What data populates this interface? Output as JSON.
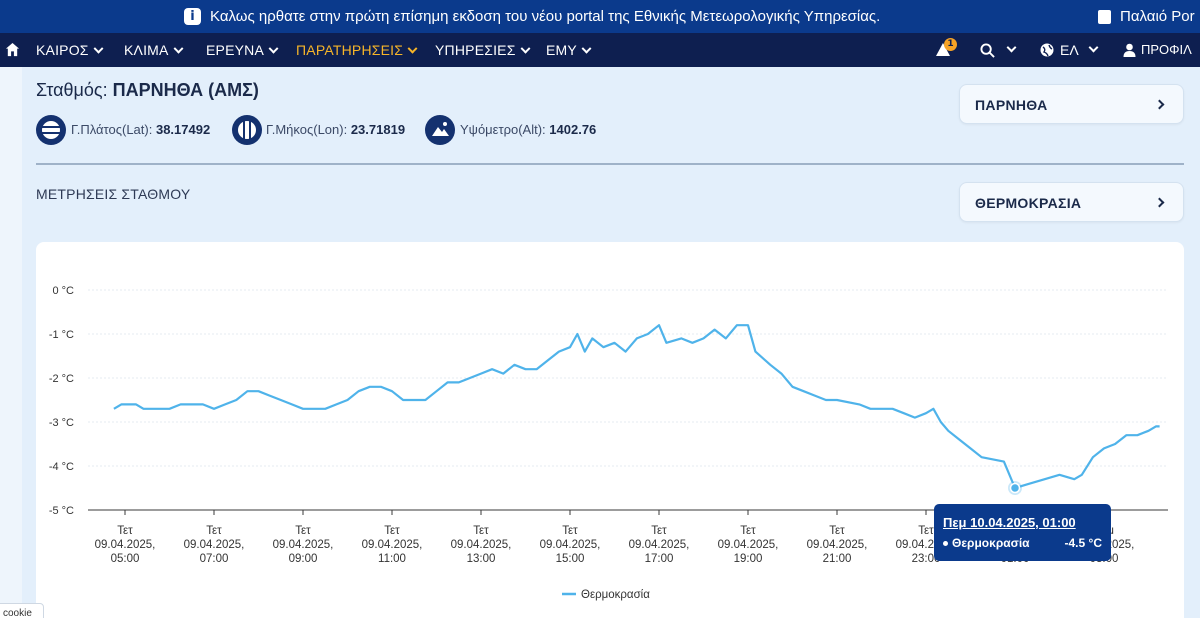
{
  "announcement": {
    "message": "Καλως ηρθατε στην πρώτη επίσημη εκδοση του νέου portal της Εθνικής Μετεωρολογικής Υπηρεσίας.",
    "old_portal_label": "Παλαιό Por"
  },
  "nav": {
    "items": [
      {
        "label": "ΚΑΙΡΟΣ"
      },
      {
        "label": "ΚΛΙΜΑ"
      },
      {
        "label": "ΕΡΕΥΝΑ"
      },
      {
        "label": "ΠΑΡΑΤΗΡΗΣΕΙΣ"
      },
      {
        "label": "ΥΠΗΡΕΣΙΕΣ"
      },
      {
        "label": "ΕΜΥ"
      }
    ],
    "active_item": "ΠΑΡΑΤΗΡΗΣΕΙΣ",
    "notification_count": "1",
    "language": "ΕΛ",
    "profile": "ΠΡΟΦΙΛ",
    "colors": {
      "bar": "#0e1f50",
      "active": "#f7b529",
      "announce": "#0b3a8c"
    }
  },
  "station": {
    "label": "Σταθμός:",
    "name": "ΠΑΡΝΗΘΑ (ΑΜΣ)",
    "lat_label": "Γ.Πλάτος(Lat):",
    "lat": "38.17492",
    "lon_label": "Γ.Μήκος(Lon):",
    "lon": "23.71819",
    "alt_label": "Υψόμετρο(Alt):",
    "alt": "1402.76"
  },
  "station_select": {
    "value": "ΠΑΡΝΗΘΑ"
  },
  "measurements": {
    "title": "ΜΕΤΡΗΣΕΙΣ ΣΤΑΘΜΟΥ"
  },
  "parameter_select": {
    "value": "ΘΕΡΜΟΚΡΑΣΙΑ"
  },
  "tooltip": {
    "date": "Πεμ 10.04.2025, 01:00",
    "series": "Θερμοκρασία",
    "value": "-4.5 °C"
  },
  "cookie": {
    "label": "cookie"
  },
  "chart_data": {
    "type": "line",
    "ylim": [
      -5,
      0
    ],
    "y_ticks": [
      "0 °C",
      "-1 °C",
      "-2 °C",
      "-3 °C",
      "-4 °C",
      "-5 °C"
    ],
    "x_ticks": [
      {
        "day": "Τετ",
        "date": "09.04.2025,",
        "time": "05:00"
      },
      {
        "day": "Τετ",
        "date": "09.04.2025,",
        "time": "07:00"
      },
      {
        "day": "Τετ",
        "date": "09.04.2025,",
        "time": "09:00"
      },
      {
        "day": "Τετ",
        "date": "09.04.2025,",
        "time": "11:00"
      },
      {
        "day": "Τετ",
        "date": "09.04.2025,",
        "time": "13:00"
      },
      {
        "day": "Τετ",
        "date": "09.04.2025,",
        "time": "15:00"
      },
      {
        "day": "Τετ",
        "date": "09.04.2025,",
        "time": "17:00"
      },
      {
        "day": "Τετ",
        "date": "09.04.2025,",
        "time": "19:00"
      },
      {
        "day": "Τετ",
        "date": "09.04.2025,",
        "time": "21:00"
      },
      {
        "day": "Τετ",
        "date": "09.04.2025,",
        "time": "23:00"
      },
      {
        "day": "Πεμ",
        "date": "10.04.2025,",
        "time": "01:00"
      },
      {
        "day": "Πεμ",
        "date": "10.04.2025,",
        "time": "03:00"
      }
    ],
    "series": [
      {
        "name": "Θερμοκρασία",
        "color": "#4fb3ea",
        "points": [
          [
            "04:45",
            -2.7
          ],
          [
            "04:55",
            -2.6
          ],
          [
            "05:15",
            -2.6
          ],
          [
            "05:25",
            -2.7
          ],
          [
            "06:00",
            -2.7
          ],
          [
            "06:15",
            -2.6
          ],
          [
            "06:45",
            -2.6
          ],
          [
            "07:00",
            -2.7
          ],
          [
            "07:15",
            -2.6
          ],
          [
            "07:30",
            -2.5
          ],
          [
            "07:45",
            -2.3
          ],
          [
            "08:00",
            -2.3
          ],
          [
            "08:15",
            -2.4
          ],
          [
            "08:30",
            -2.5
          ],
          [
            "08:45",
            -2.6
          ],
          [
            "09:00",
            -2.7
          ],
          [
            "09:30",
            -2.7
          ],
          [
            "09:45",
            -2.6
          ],
          [
            "10:00",
            -2.5
          ],
          [
            "10:15",
            -2.3
          ],
          [
            "10:30",
            -2.2
          ],
          [
            "10:45",
            -2.2
          ],
          [
            "11:00",
            -2.3
          ],
          [
            "11:15",
            -2.5
          ],
          [
            "11:45",
            -2.5
          ],
          [
            "12:00",
            -2.3
          ],
          [
            "12:15",
            -2.1
          ],
          [
            "12:30",
            -2.1
          ],
          [
            "12:45",
            -2.0
          ],
          [
            "13:00",
            -1.9
          ],
          [
            "13:15",
            -1.8
          ],
          [
            "13:30",
            -1.9
          ],
          [
            "13:45",
            -1.7
          ],
          [
            "14:00",
            -1.8
          ],
          [
            "14:15",
            -1.8
          ],
          [
            "14:30",
            -1.6
          ],
          [
            "14:45",
            -1.4
          ],
          [
            "15:00",
            -1.3
          ],
          [
            "15:10",
            -1.0
          ],
          [
            "15:20",
            -1.4
          ],
          [
            "15:30",
            -1.1
          ],
          [
            "15:45",
            -1.3
          ],
          [
            "16:00",
            -1.2
          ],
          [
            "16:15",
            -1.4
          ],
          [
            "16:30",
            -1.1
          ],
          [
            "16:45",
            -1.0
          ],
          [
            "17:00",
            -0.8
          ],
          [
            "17:10",
            -1.2
          ],
          [
            "17:30",
            -1.1
          ],
          [
            "17:45",
            -1.2
          ],
          [
            "18:00",
            -1.1
          ],
          [
            "18:15",
            -0.9
          ],
          [
            "18:30",
            -1.1
          ],
          [
            "18:45",
            -0.8
          ],
          [
            "19:00",
            -0.8
          ],
          [
            "19:10",
            -1.4
          ],
          [
            "19:30",
            -1.7
          ],
          [
            "19:45",
            -1.9
          ],
          [
            "20:00",
            -2.2
          ],
          [
            "20:15",
            -2.3
          ],
          [
            "20:30",
            -2.4
          ],
          [
            "20:45",
            -2.5
          ],
          [
            "21:00",
            -2.5
          ],
          [
            "21:30",
            -2.6
          ],
          [
            "21:45",
            -2.7
          ],
          [
            "22:15",
            -2.7
          ],
          [
            "22:30",
            -2.8
          ],
          [
            "22:45",
            -2.9
          ],
          [
            "23:00",
            -2.8
          ],
          [
            "23:10",
            -2.7
          ],
          [
            "23:20",
            -3.0
          ],
          [
            "23:30",
            -3.2
          ],
          [
            "23:45",
            -3.4
          ],
          [
            "00:00",
            -3.6
          ],
          [
            "00:15",
            -3.8
          ],
          [
            "00:45",
            -3.9
          ],
          [
            "01:00",
            -4.5
          ],
          [
            "01:20",
            -4.4
          ],
          [
            "01:40",
            -4.3
          ],
          [
            "02:00",
            -4.2
          ],
          [
            "02:20",
            -4.3
          ],
          [
            "02:30",
            -4.2
          ],
          [
            "02:45",
            -3.8
          ],
          [
            "03:00",
            -3.6
          ],
          [
            "03:15",
            -3.5
          ],
          [
            "03:30",
            -3.3
          ],
          [
            "03:45",
            -3.3
          ],
          [
            "04:00",
            -3.2
          ],
          [
            "04:10",
            -3.1
          ],
          [
            "04:15",
            -3.1
          ]
        ]
      }
    ],
    "highlight": {
      "x": "01:00",
      "y": -4.5
    },
    "grid": true,
    "legend": "bottom-center"
  }
}
